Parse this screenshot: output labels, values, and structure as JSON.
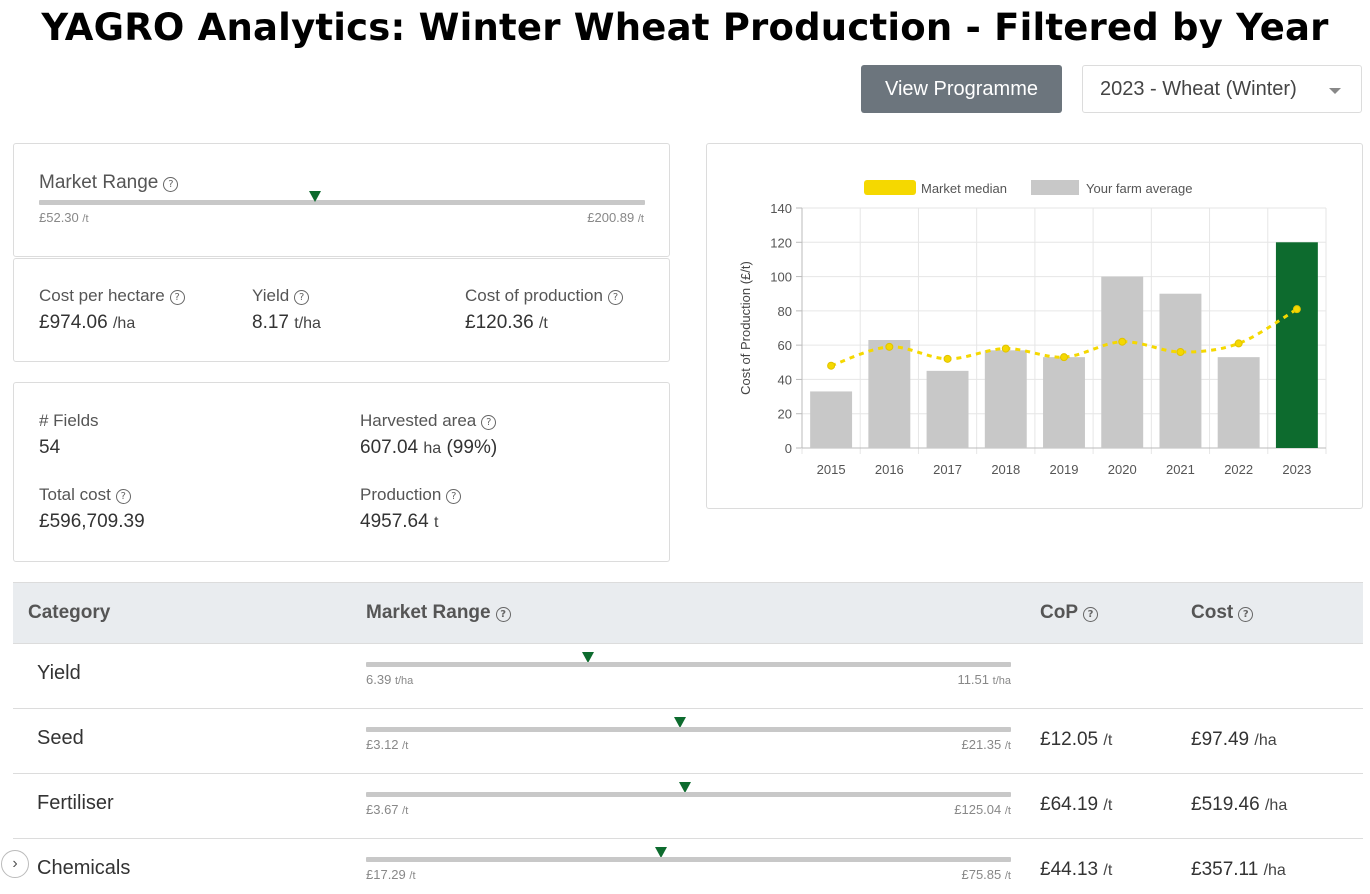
{
  "page_title": "YAGRO Analytics: Winter Wheat Production - Filtered by Year",
  "header": {
    "view_programme_label": "View Programme",
    "year_selected": "2023 - Wheat (Winter)"
  },
  "market_range_card": {
    "label": "Market Range",
    "min": "£52.30",
    "max": "£200.89",
    "unit": "/t",
    "marker_fraction": 0.455
  },
  "summary": {
    "cost_per_hectare": {
      "label": "Cost per hectare",
      "value": "£974.06",
      "unit": "/ha"
    },
    "yield": {
      "label": "Yield",
      "value": "8.17",
      "unit": "t/ha"
    },
    "cost_of_production": {
      "label": "Cost of production",
      "value": "£120.36",
      "unit": "/t"
    }
  },
  "details": {
    "fields": {
      "label": "# Fields",
      "value": "54"
    },
    "harvested_area": {
      "label": "Harvested area",
      "value": "607.04",
      "unit": "ha",
      "extra": "(99%)"
    },
    "total_cost": {
      "label": "Total cost",
      "value": "£596,709.39"
    },
    "production": {
      "label": "Production",
      "value": "4957.64",
      "unit": "t"
    }
  },
  "chart_data": {
    "type": "bar",
    "categories": [
      "2015",
      "2016",
      "2017",
      "2018",
      "2019",
      "2020",
      "2021",
      "2022",
      "2023"
    ],
    "series": [
      {
        "name": "Your farm average",
        "type": "bar",
        "values": [
          33,
          63,
          45,
          57,
          53,
          100,
          90,
          53,
          120
        ],
        "color": "#c8c8c8",
        "highlight_color": "#0d6b2e",
        "highlight_index": 8
      },
      {
        "name": "Market median",
        "type": "line",
        "values": [
          48,
          59,
          52,
          58,
          53,
          62,
          56,
          61,
          81
        ],
        "color": "#f5d800"
      }
    ],
    "ylabel": "Cost of Production (£/t)",
    "xlabel": "",
    "ylim": [
      0,
      140
    ],
    "yticks": [
      "0",
      "20",
      "40",
      "60",
      "80",
      "100",
      "120",
      "140"
    ],
    "grid": true,
    "legend_position": "top"
  },
  "table": {
    "headers": {
      "category": "Category",
      "market_range": "Market Range",
      "cop": "CoP",
      "cost": "Cost"
    },
    "rows": [
      {
        "category": "Yield",
        "min": "6.39",
        "max": "11.51",
        "unit": "t/ha",
        "marker_fraction": 0.344,
        "cop": "",
        "cop_unit": "",
        "cost": "",
        "cost_unit": ""
      },
      {
        "category": "Seed",
        "min": "£3.12",
        "max": "£21.35",
        "unit": "/t",
        "marker_fraction": 0.487,
        "cop": "£12.05",
        "cop_unit": "/t",
        "cost": "£97.49",
        "cost_unit": "/ha"
      },
      {
        "category": "Fertiliser",
        "min": "£3.67",
        "max": "£125.04",
        "unit": "/t",
        "marker_fraction": 0.495,
        "cop": "£64.19",
        "cop_unit": "/t",
        "cost": "£519.46",
        "cost_unit": "/ha"
      },
      {
        "category": "Chemicals",
        "min": "£17.29",
        "max": "£75.85",
        "unit": "/t",
        "marker_fraction": 0.457,
        "cop": "£44.13",
        "cop_unit": "/t",
        "cost": "£357.11",
        "cost_unit": "/ha"
      }
    ]
  }
}
